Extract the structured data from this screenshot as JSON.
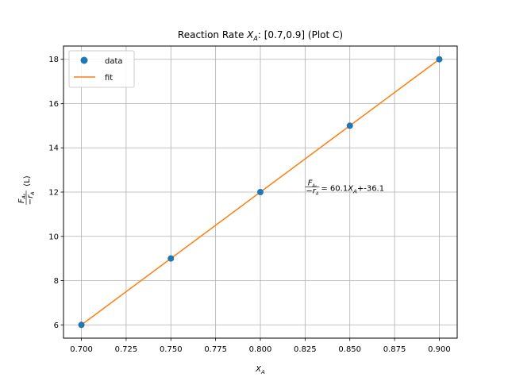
{
  "chart_data": {
    "type": "scatter",
    "title_prefix": "Reaction Rate ",
    "title_var": "X",
    "title_var_sub": "A",
    "title_suffix": ": [0.7,0.9] (Plot C)",
    "xlabel_var": "X",
    "xlabel_sub": "A",
    "ylabel_num": "F",
    "ylabel_num_sub": "A₀",
    "ylabel_den": "−r",
    "ylabel_den_sub": "A",
    "ylabel_unit": "(L)",
    "xlim": [
      0.69,
      0.91
    ],
    "ylim": [
      5.4,
      18.6
    ],
    "xticks": [
      0.7,
      0.725,
      0.75,
      0.775,
      0.8,
      0.825,
      0.85,
      0.875,
      0.9
    ],
    "xtick_labels": [
      "0.700",
      "0.725",
      "0.750",
      "0.775",
      "0.800",
      "0.825",
      "0.850",
      "0.875",
      "0.900"
    ],
    "yticks": [
      6,
      8,
      10,
      12,
      14,
      16,
      18
    ],
    "ytick_labels": [
      "6",
      "8",
      "10",
      "12",
      "14",
      "16",
      "18"
    ],
    "grid": true,
    "legend_position": "top-left",
    "series": [
      {
        "name": "data",
        "kind": "markers",
        "color": "#1f77b4",
        "x": [
          0.7,
          0.75,
          0.8,
          0.85,
          0.9
        ],
        "y": [
          6,
          9,
          12,
          15,
          18
        ]
      },
      {
        "name": "fit",
        "kind": "line",
        "color": "#ff7f0e",
        "x": [
          0.7,
          0.75,
          0.8,
          0.85,
          0.9
        ],
        "y": [
          6,
          9,
          12,
          15,
          18
        ]
      }
    ],
    "annotation": {
      "frac_num": "F",
      "frac_num_sub": "A₀",
      "frac_den": "−r",
      "frac_den_sub": "A",
      "eq_text": " = 60.1",
      "eq_var": "X",
      "eq_var_sub": "A",
      "eq_tail": "+-36.1",
      "x": 0.825,
      "y": 12.2
    }
  }
}
